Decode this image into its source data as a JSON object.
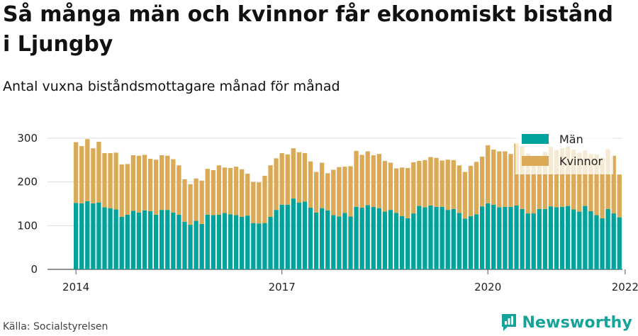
{
  "title": "Så många män och kvinnor får ekonomiskt bistånd i Ljungby",
  "subtitle": "Antal vuxna biståndsmottagare månad för månad",
  "source": "Källa: Socialstyrelsen",
  "brand": {
    "name": "Newsworthy",
    "icon": "newsworthy-logo-icon",
    "color": "#16A39A"
  },
  "chart_data": {
    "type": "bar",
    "stacked": true,
    "x_start": "2014-01",
    "x_ticks": [
      "2014",
      "2017",
      "2020",
      "2022"
    ],
    "y_ticks": [
      0,
      100,
      200,
      300
    ],
    "ylim": [
      0,
      300
    ],
    "grid": true,
    "legend_position": "top-right",
    "series": [
      {
        "name": "Män",
        "color": "#00A39B",
        "values": [
          152,
          151,
          156,
          151,
          153,
          142,
          140,
          137,
          120,
          125,
          134,
          130,
          135,
          133,
          125,
          136,
          136,
          130,
          125,
          109,
          102,
          111,
          104,
          125,
          124,
          125,
          129,
          126,
          124,
          120,
          123,
          106,
          105,
          106,
          120,
          136,
          148,
          148,
          162,
          153,
          155,
          141,
          130,
          140,
          135,
          124,
          121,
          129,
          121,
          143,
          141,
          147,
          143,
          140,
          132,
          136,
          129,
          122,
          117,
          128,
          145,
          142,
          146,
          143,
          143,
          136,
          138,
          129,
          116,
          122,
          126,
          144,
          151,
          148,
          142,
          143,
          143,
          146,
          138,
          128,
          128,
          138,
          138,
          144,
          142,
          143,
          145,
          137,
          132,
          145,
          133,
          124,
          117,
          138,
          128,
          119
        ]
      },
      {
        "name": "Kvinnor",
        "color": "#DBAA56",
        "values": [
          139,
          131,
          142,
          126,
          139,
          124,
          126,
          130,
          120,
          116,
          127,
          130,
          127,
          120,
          126,
          125,
          124,
          122,
          113,
          97,
          93,
          97,
          99,
          105,
          103,
          113,
          104,
          106,
          111,
          109,
          96,
          94,
          94,
          108,
          118,
          118,
          118,
          115,
          115,
          115,
          111,
          106,
          93,
          104,
          85,
          104,
          113,
          106,
          115,
          128,
          121,
          123,
          118,
          124,
          116,
          108,
          102,
          111,
          115,
          117,
          103,
          108,
          111,
          112,
          106,
          115,
          112,
          109,
          107,
          115,
          120,
          114,
          133,
          126,
          128,
          127,
          121,
          142,
          144,
          137,
          125,
          120,
          131,
          136,
          131,
          134,
          136,
          137,
          135,
          127,
          131,
          139,
          139,
          137,
          132,
          98
        ]
      }
    ]
  }
}
